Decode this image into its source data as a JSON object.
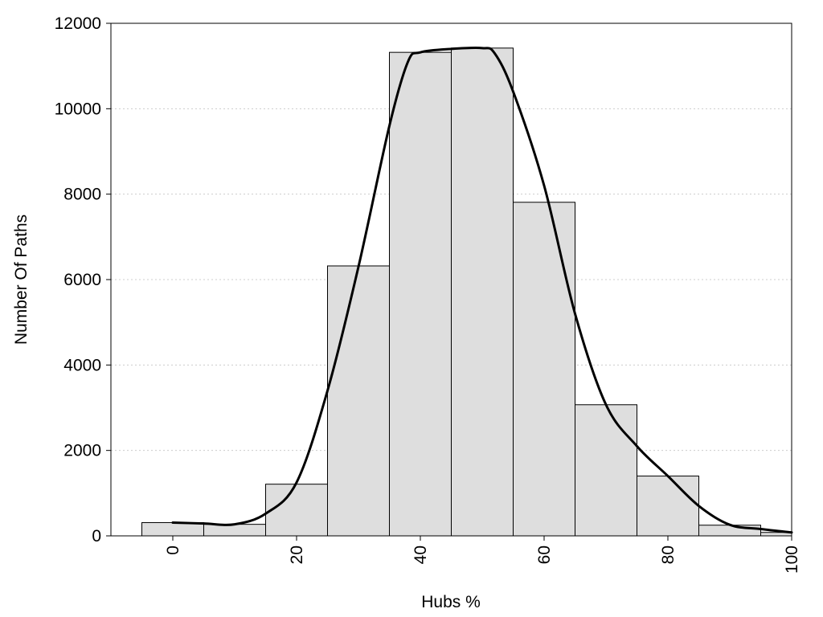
{
  "chart_data": {
    "type": "bar",
    "title": "",
    "xlabel": "Hubs %",
    "ylabel": "Number Of Paths",
    "xlim": [
      -10,
      100
    ],
    "ylim": [
      0,
      12000
    ],
    "x_ticks": [
      0,
      20,
      40,
      60,
      80,
      100
    ],
    "y_ticks": [
      0,
      2000,
      4000,
      6000,
      8000,
      10000,
      12000
    ],
    "grid": "horizontal dotted",
    "bin_width": 10,
    "bins": [
      {
        "x": 0,
        "value": 310
      },
      {
        "x": 10,
        "value": 270
      },
      {
        "x": 20,
        "value": 1210
      },
      {
        "x": 30,
        "value": 6320
      },
      {
        "x": 40,
        "value": 11320
      },
      {
        "x": 50,
        "value": 11420
      },
      {
        "x": 60,
        "value": 7810
      },
      {
        "x": 70,
        "value": 3070
      },
      {
        "x": 80,
        "value": 1400
      },
      {
        "x": 90,
        "value": 250
      },
      {
        "x": 100,
        "value": 80
      }
    ],
    "curve": {
      "type": "line",
      "points": [
        [
          0,
          310
        ],
        [
          5,
          290
        ],
        [
          10,
          270
        ],
        [
          15,
          520
        ],
        [
          20,
          1250
        ],
        [
          25,
          3400
        ],
        [
          30,
          6300
        ],
        [
          35,
          9600
        ],
        [
          38,
          11100
        ],
        [
          40,
          11320
        ],
        [
          45,
          11400
        ],
        [
          50,
          11420
        ],
        [
          52,
          11300
        ],
        [
          55,
          10400
        ],
        [
          60,
          8200
        ],
        [
          65,
          5200
        ],
        [
          70,
          3070
        ],
        [
          75,
          2100
        ],
        [
          80,
          1400
        ],
        [
          85,
          700
        ],
        [
          90,
          260
        ],
        [
          95,
          160
        ],
        [
          100,
          80
        ]
      ]
    },
    "colors": {
      "bar_fill": "#dedede",
      "bar_stroke": "#000000",
      "curve": "#000000",
      "grid": "#cccccc"
    }
  }
}
